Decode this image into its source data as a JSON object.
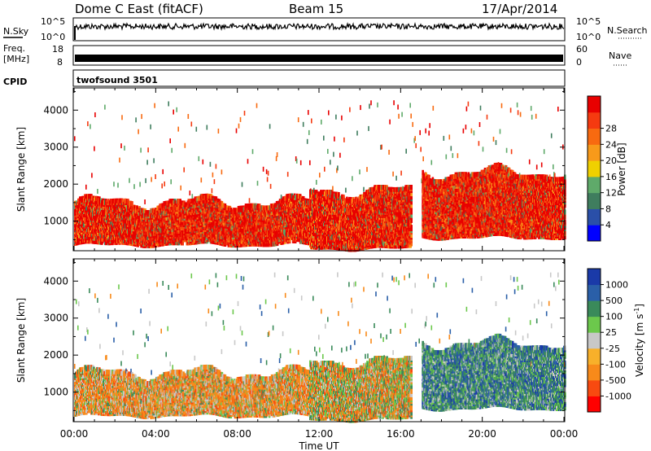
{
  "header": {
    "station": "Dome C East (fitACF)",
    "beam": "Beam 15",
    "date": "17/Apr/2014"
  },
  "panels": {
    "nsky": {
      "label": "N.Sky",
      "right_label": "N.Search",
      "ticks_left": [
        "10^5",
        "10^0"
      ],
      "ticks_right": [
        "10^5",
        "10^0"
      ]
    },
    "freq": {
      "label_top": "Freq.",
      "label_bottom": "[MHz]",
      "right_label": "Nave",
      "ticks_left": [
        "18",
        "8"
      ],
      "ticks_right": [
        "60",
        "0"
      ]
    },
    "cpid": {
      "label": "CPID",
      "value": "twofsound 3501"
    }
  },
  "colors": {
    "power_scale": [
      "#0000ff",
      "#2a4fa8",
      "#3f7d5e",
      "#5faa6a",
      "#f0d000",
      "#f89a1a",
      "#f86a10",
      "#f53a10",
      "#e80000"
    ],
    "velocity_scale": [
      "#ff0000",
      "#f84a10",
      "#f88a1a",
      "#f8b02a",
      "#c8c8c8",
      "#6cc84c",
      "#3a8a5a",
      "#2a5fa8",
      "#1a3aa8"
    ]
  },
  "chart_data": [
    {
      "type": "heatmap",
      "title": "",
      "xlabel": "",
      "ylabel": "Slant Range [km]",
      "x_ticks": [
        "00:00",
        "04:00",
        "08:00",
        "12:00",
        "16:00",
        "20:00",
        "00:00"
      ],
      "y_ticks": [
        "1000",
        "2000",
        "3000",
        "4000"
      ],
      "ylim": [
        200,
        4600
      ],
      "colorbar": {
        "label": "Power [dB]",
        "ticks": [
          "4",
          "8",
          "12",
          "16",
          "20",
          "24",
          "28"
        ],
        "range": [
          0,
          30
        ]
      },
      "scatter_regions": [
        {
          "t_start": 0.0,
          "t_end": 11.5,
          "range_low": 400,
          "range_high": 1500,
          "level": "high"
        },
        {
          "t_start": 11.5,
          "t_end": 16.5,
          "range_low": 300,
          "range_high": 1800,
          "level": "high"
        },
        {
          "t_start": 17.0,
          "t_end": 24.0,
          "range_low": 600,
          "range_high": 2300,
          "level": "high"
        }
      ]
    },
    {
      "type": "heatmap",
      "title": "",
      "xlabel": "Time UT",
      "ylabel": "Slant Range [km]",
      "x_ticks": [
        "00:00",
        "04:00",
        "08:00",
        "12:00",
        "16:00",
        "20:00",
        "00:00"
      ],
      "y_ticks": [
        "1000",
        "2000",
        "3000",
        "4000"
      ],
      "ylim": [
        200,
        4600
      ],
      "colorbar": {
        "label": "Velocity [m s",
        "label_sup": "-1",
        "label_end": "]",
        "ticks": [
          "-1000",
          "-500",
          "-100",
          "-25",
          "25",
          "100",
          "500",
          "1000"
        ],
        "range": [
          -1500,
          1500
        ]
      },
      "scatter_regions": [
        {
          "t_start": 0.0,
          "t_end": 11.5,
          "range_low": 400,
          "range_high": 1500,
          "velocity": "negative"
        },
        {
          "t_start": 11.5,
          "t_end": 16.5,
          "range_low": 300,
          "range_high": 1800,
          "velocity": "mixed"
        },
        {
          "t_start": 17.0,
          "t_end": 24.0,
          "range_low": 600,
          "range_high": 2300,
          "velocity": "positive"
        }
      ]
    }
  ]
}
